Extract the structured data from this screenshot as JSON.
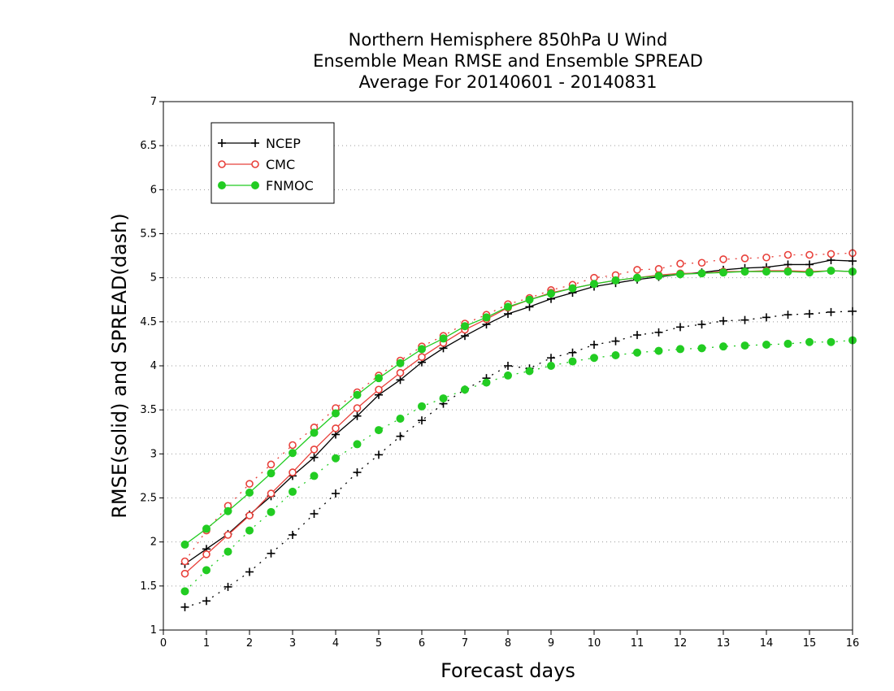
{
  "chart_data": {
    "type": "line",
    "title": "Northern Hemisphere 850hPa U Wind",
    "subtitle": "Ensemble Mean RMSE and Ensemble SPREAD",
    "subtitle2": "Average For 20140601 - 20140831",
    "xlabel": "Forecast days",
    "ylabel": "RMSE(solid) and SPREAD(dash)",
    "xlim": [
      0,
      16
    ],
    "ylim": [
      1,
      7
    ],
    "xticks": [
      "0",
      "1",
      "2",
      "3",
      "4",
      "5",
      "6",
      "7",
      "8",
      "9",
      "10",
      "11",
      "12",
      "13",
      "14",
      "15",
      "16"
    ],
    "yticks": [
      "1",
      "1.5",
      "2",
      "2.5",
      "3",
      "3.5",
      "4",
      "4.5",
      "5",
      "5.5",
      "6",
      "6.5",
      "7"
    ],
    "grid": true,
    "legend_position": "top-left",
    "x": [
      0.5,
      1,
      1.5,
      2,
      2.5,
      3,
      3.5,
      4,
      4.5,
      5,
      5.5,
      6,
      6.5,
      7,
      7.5,
      8,
      8.5,
      9,
      9.5,
      10,
      10.5,
      11,
      11.5,
      12,
      12.5,
      13,
      13.5,
      14,
      14.5,
      15,
      15.5,
      16
    ],
    "series": [
      {
        "name": "NCEP",
        "color": "#000000",
        "marker": "plus",
        "rmse": [
          1.75,
          1.92,
          2.09,
          2.31,
          2.52,
          2.75,
          2.96,
          3.22,
          3.43,
          3.67,
          3.84,
          4.04,
          4.2,
          4.34,
          4.47,
          4.59,
          4.67,
          4.76,
          4.83,
          4.9,
          4.94,
          4.98,
          5.01,
          5.04,
          5.06,
          5.09,
          5.11,
          5.12,
          5.15,
          5.15,
          5.2,
          5.19
        ],
        "spread": [
          1.26,
          1.33,
          1.49,
          1.66,
          1.87,
          2.08,
          2.32,
          2.55,
          2.79,
          2.99,
          3.2,
          3.38,
          3.57,
          3.73,
          3.86,
          4.0,
          3.97,
          4.09,
          4.15,
          4.24,
          4.28,
          4.35,
          4.38,
          4.44,
          4.47,
          4.51,
          4.52,
          4.55,
          4.58,
          4.59,
          4.61,
          4.62
        ]
      },
      {
        "name": "CMC",
        "color": "#e8403a",
        "marker": "circle-open",
        "rmse": [
          1.64,
          1.86,
          2.08,
          2.3,
          2.55,
          2.79,
          3.05,
          3.29,
          3.52,
          3.73,
          3.92,
          4.1,
          4.26,
          4.41,
          4.53,
          4.66,
          4.75,
          4.83,
          4.88,
          4.93,
          4.97,
          5.0,
          5.03,
          5.05,
          5.05,
          5.07,
          5.07,
          5.08,
          5.08,
          5.07,
          5.08,
          5.07
        ],
        "spread": [
          1.78,
          2.13,
          2.41,
          2.66,
          2.88,
          3.1,
          3.3,
          3.52,
          3.7,
          3.89,
          4.06,
          4.22,
          4.34,
          4.48,
          4.58,
          4.7,
          4.77,
          4.86,
          4.92,
          5.0,
          5.03,
          5.09,
          5.1,
          5.16,
          5.17,
          5.21,
          5.22,
          5.23,
          5.26,
          5.26,
          5.27,
          5.28
        ]
      },
      {
        "name": "FNMOC",
        "color": "#22cc22",
        "marker": "circle-filled",
        "rmse": [
          1.97,
          2.15,
          2.35,
          2.56,
          2.78,
          3.01,
          3.24,
          3.46,
          3.67,
          3.86,
          4.03,
          4.19,
          4.31,
          4.45,
          4.55,
          4.67,
          4.75,
          4.82,
          4.88,
          4.93,
          4.97,
          5.0,
          5.02,
          5.04,
          5.05,
          5.06,
          5.07,
          5.07,
          5.07,
          5.06,
          5.08,
          5.07
        ],
        "spread": [
          1.44,
          1.68,
          1.89,
          2.13,
          2.34,
          2.57,
          2.75,
          2.95,
          3.11,
          3.27,
          3.4,
          3.54,
          3.63,
          3.73,
          3.81,
          3.89,
          3.94,
          4.0,
          4.05,
          4.09,
          4.12,
          4.15,
          4.17,
          4.19,
          4.2,
          4.22,
          4.23,
          4.24,
          4.25,
          4.27,
          4.27,
          4.29
        ]
      }
    ]
  }
}
